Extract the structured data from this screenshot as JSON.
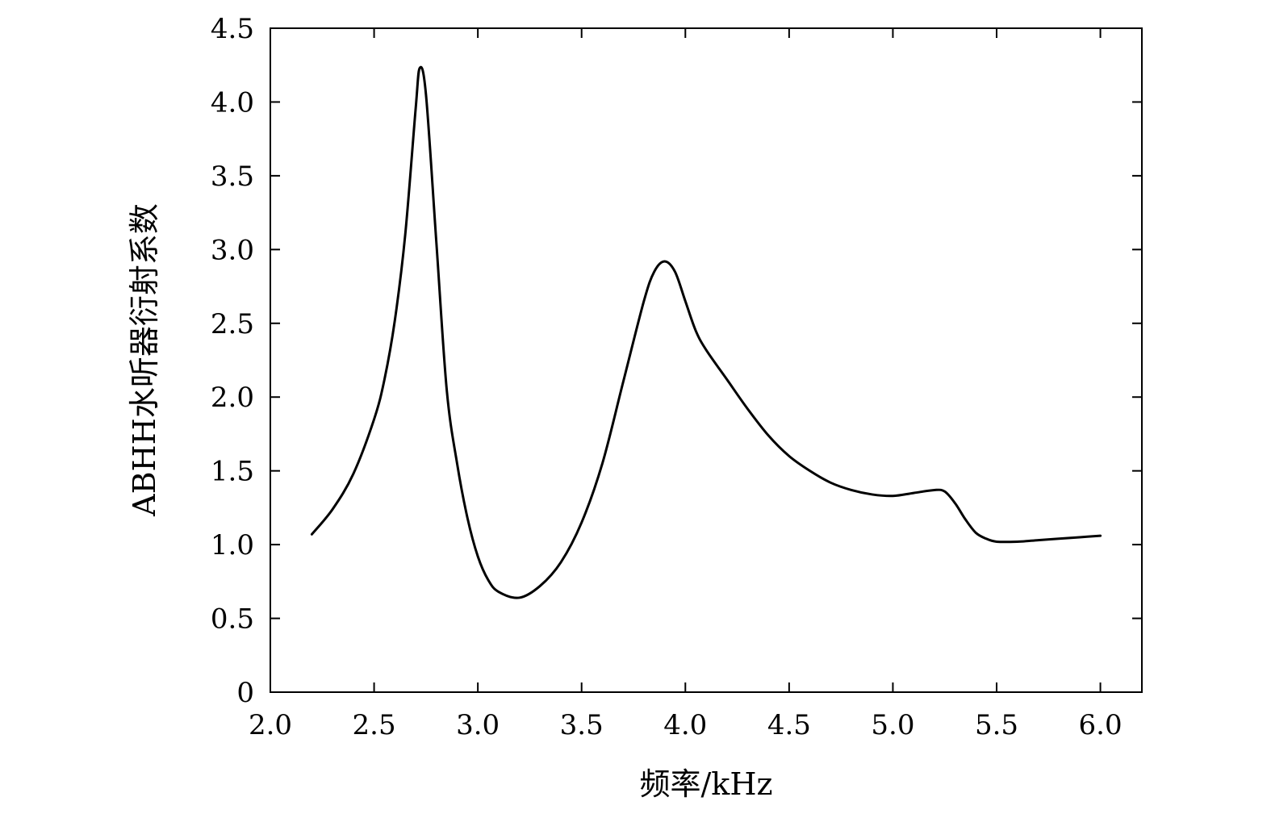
{
  "chart_data": {
    "type": "line",
    "xlabel": "频率/kHz",
    "ylabel": "ABHH水听器衍射系数",
    "xlim": [
      2.0,
      6.2
    ],
    "ylim": [
      0,
      4.5
    ],
    "x_ticks": [
      2.0,
      2.5,
      3.0,
      3.5,
      4.0,
      4.5,
      5.0,
      5.5,
      6.0
    ],
    "x_tick_labels": [
      "2.0",
      "2.5",
      "3.0",
      "3.5",
      "4.0",
      "4.5",
      "5.0",
      "5.5",
      "6.0"
    ],
    "y_ticks": [
      0,
      0.5,
      1.0,
      1.5,
      2.0,
      2.5,
      3.0,
      3.5,
      4.0,
      4.5
    ],
    "y_tick_labels": [
      "0",
      "0.5",
      "1.0",
      "1.5",
      "2.0",
      "2.5",
      "3.0",
      "3.5",
      "4.0",
      "4.5"
    ],
    "grid": false,
    "legend": "none",
    "line_color": "#000000",
    "series": [
      {
        "x": [
          2.2,
          2.3,
          2.4,
          2.5,
          2.55,
          2.6,
          2.65,
          2.7,
          2.72,
          2.75,
          2.8,
          2.85,
          2.9,
          2.95,
          3.0,
          3.05,
          3.1,
          3.2,
          3.3,
          3.4,
          3.5,
          3.6,
          3.7,
          3.8,
          3.85,
          3.9,
          3.95,
          4.0,
          4.05,
          4.1,
          4.2,
          4.3,
          4.4,
          4.5,
          4.6,
          4.7,
          4.8,
          4.9,
          5.0,
          5.1,
          5.2,
          5.25,
          5.3,
          5.35,
          5.4,
          5.45,
          5.5,
          5.6,
          5.7,
          5.8,
          5.9,
          6.0
        ],
        "y": [
          1.07,
          1.24,
          1.48,
          1.85,
          2.12,
          2.52,
          3.1,
          3.95,
          4.23,
          4.05,
          3.05,
          2.05,
          1.55,
          1.18,
          0.92,
          0.76,
          0.68,
          0.64,
          0.72,
          0.88,
          1.15,
          1.55,
          2.1,
          2.65,
          2.85,
          2.92,
          2.85,
          2.65,
          2.45,
          2.32,
          2.12,
          1.92,
          1.74,
          1.6,
          1.5,
          1.42,
          1.37,
          1.34,
          1.33,
          1.35,
          1.37,
          1.36,
          1.28,
          1.17,
          1.08,
          1.04,
          1.02,
          1.02,
          1.03,
          1.04,
          1.05,
          1.06
        ]
      }
    ]
  }
}
